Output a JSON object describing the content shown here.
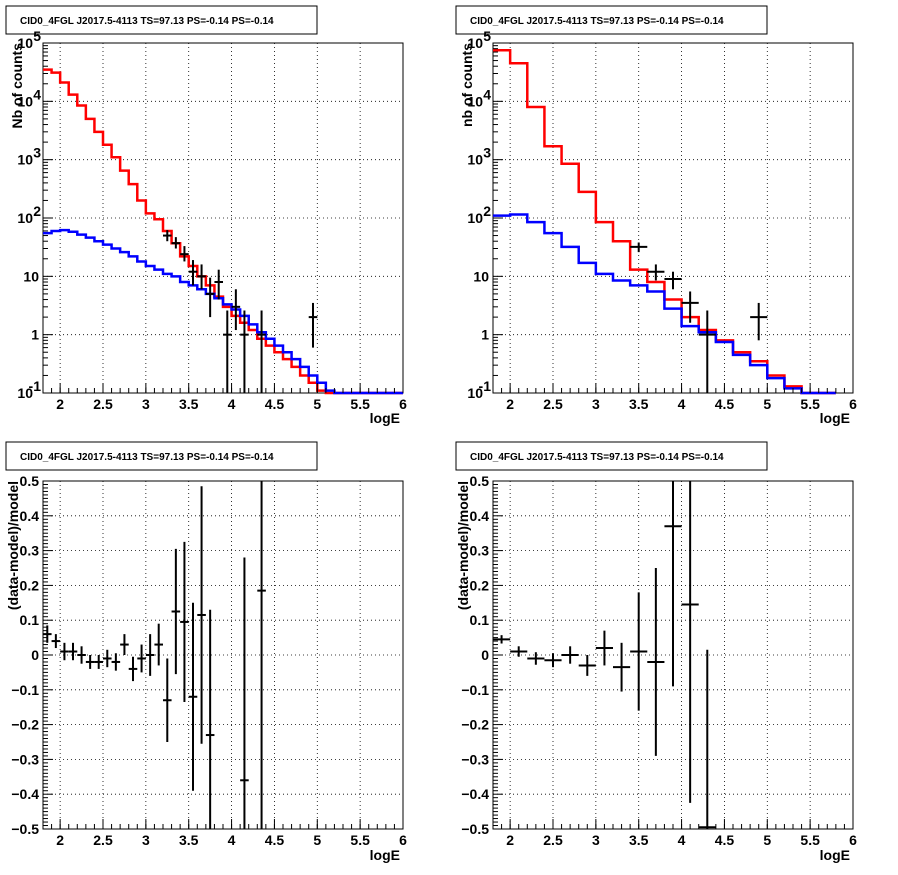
{
  "chart_data": [
    {
      "type": "line",
      "title": "CID0_4FGL J2017.5-4113 TS=97.13 PS=-0.14 PS=-0.14",
      "xlabel": "logE",
      "ylabel": "Nb of counts",
      "xlim": [
        1.8,
        6.0
      ],
      "ylim": [
        0.1,
        100000
      ],
      "yscale": "log",
      "grid": true,
      "step_edges": [
        1.8,
        1.9,
        2.0,
        2.1,
        2.2,
        2.3,
        2.4,
        2.5,
        2.6,
        2.7,
        2.8,
        2.9,
        3.0,
        3.1,
        3.2,
        3.3,
        3.4,
        3.5,
        3.6,
        3.7,
        3.8,
        3.9,
        4.0,
        4.1,
        4.2,
        4.3,
        4.4,
        4.5,
        4.6,
        4.7,
        4.8,
        4.9,
        5.0,
        5.1,
        5.2,
        5.3,
        5.4,
        5.5,
        5.6,
        5.7,
        5.8,
        5.9,
        6.0
      ],
      "series": [
        {
          "color": "#ff0000",
          "kind": "step",
          "values": [
            35000,
            31000,
            21000,
            13000,
            8500,
            5000,
            3000,
            1800,
            1100,
            650,
            380,
            200,
            120,
            95,
            60,
            37,
            22,
            15,
            10,
            7,
            4.5,
            3,
            2.1,
            1.6,
            1.2,
            0.85,
            0.65,
            0.5,
            0.38,
            0.28,
            0.2,
            0.15,
            0.11,
            0.1,
            0.1,
            0.1,
            0.1,
            0.1,
            0.1,
            0.1,
            0.1,
            0.1
          ]
        },
        {
          "color": "#0000ff",
          "kind": "step",
          "values": [
            55,
            60,
            62,
            58,
            52,
            46,
            40,
            35,
            30,
            26,
            22,
            18,
            15,
            13,
            11,
            10,
            8,
            7,
            6,
            5,
            4.2,
            3.3,
            2.7,
            2.1,
            1.5,
            1.1,
            0.85,
            0.65,
            0.5,
            0.38,
            0.28,
            0.2,
            0.15,
            0.11,
            0.1,
            0.1,
            0.1,
            0.1,
            0.1,
            0.1,
            0.1,
            0.1
          ]
        }
      ],
      "points": {
        "x": [
          3.25,
          3.35,
          3.45,
          3.55,
          3.65,
          3.75,
          3.85,
          3.95,
          4.05,
          4.15,
          4.35,
          4.95
        ],
        "y": [
          50,
          37,
          24,
          12,
          10,
          5,
          8,
          1,
          3,
          1,
          1,
          2
        ],
        "ylo": [
          40,
          30,
          18,
          7,
          6,
          2,
          4,
          0.1,
          1.2,
          0.1,
          0.1,
          0.6
        ],
        "yhi": [
          62,
          47,
          33,
          19,
          16,
          9.5,
          13,
          2.6,
          6,
          2.6,
          2.6,
          3.5
        ],
        "xerr": 0.05
      }
    },
    {
      "type": "line",
      "title": "CID0_4FGL J2017.5-4113 TS=97.13 PS=-0.14 PS=-0.14",
      "xlabel": "logE",
      "ylabel": "nb of counts",
      "xlim": [
        1.8,
        6.0
      ],
      "ylim": [
        0.1,
        100000
      ],
      "yscale": "log",
      "grid": true,
      "step_edges": [
        1.8,
        2.0,
        2.2,
        2.4,
        2.6,
        2.8,
        3.0,
        3.2,
        3.4,
        3.6,
        3.8,
        4.0,
        4.2,
        4.4,
        4.6,
        4.8,
        5.0,
        5.2,
        5.4,
        5.6,
        5.8,
        6.0
      ],
      "series": [
        {
          "color": "#ff0000",
          "kind": "step",
          "values": [
            75000,
            45000,
            8000,
            1700,
            850,
            280,
            85,
            40,
            13,
            8,
            4,
            2,
            1.2,
            0.8,
            0.5,
            0.35,
            0.2,
            0.13,
            0.1,
            0.1
          ]
        },
        {
          "color": "#0000ff",
          "kind": "step",
          "values": [
            110,
            115,
            85,
            55,
            32,
            17,
            11,
            8.5,
            7,
            5.5,
            2.8,
            1.4,
            1.1,
            0.75,
            0.45,
            0.3,
            0.18,
            0.12,
            0.1,
            0.1
          ]
        }
      ],
      "points": {
        "x": [
          3.5,
          3.7,
          3.9,
          4.1,
          4.3,
          4.9
        ],
        "y": [
          32,
          12,
          9,
          3.5,
          1,
          2
        ],
        "ylo": [
          26,
          8.5,
          6,
          1.6,
          0.1,
          0.8
        ],
        "yhi": [
          38,
          16,
          12,
          5.5,
          2.6,
          3.5
        ],
        "xerr": 0.1
      }
    },
    {
      "type": "scatter",
      "title": "CID0_4FGL J2017.5-4113 TS=97.13 PS=-0.14 PS=-0.14",
      "xlabel": "logE",
      "ylabel": "(data-model)/model",
      "xlim": [
        1.8,
        6.0
      ],
      "ylim": [
        -0.5,
        0.5
      ],
      "grid": true,
      "points": {
        "x": [
          1.85,
          1.95,
          2.05,
          2.15,
          2.25,
          2.35,
          2.45,
          2.55,
          2.65,
          2.75,
          2.85,
          2.95,
          3.05,
          3.15,
          3.25,
          3.35,
          3.45,
          3.55,
          3.65,
          3.75,
          4.15,
          4.35
        ],
        "y": [
          0.06,
          0.04,
          0.01,
          0.01,
          0.0,
          -0.02,
          -0.02,
          -0.01,
          -0.02,
          0.03,
          -0.04,
          -0.01,
          0.0,
          0.03,
          -0.13,
          0.125,
          0.095,
          -0.12,
          0.115,
          -0.23,
          -0.36,
          0.185
        ],
        "yerr": [
          0.025,
          0.02,
          0.025,
          0.025,
          0.025,
          0.02,
          0.02,
          0.025,
          0.025,
          0.03,
          0.035,
          0.04,
          0.06,
          0.06,
          0.12,
          0.18,
          0.23,
          0.27,
          0.37,
          0.36,
          0.64,
          0.69
        ],
        "xerr": 0.05
      }
    },
    {
      "type": "scatter",
      "title": "CID0_4FGL J2017.5-4113 TS=97.13 PS=-0.14 PS=-0.14",
      "xlabel": "logE",
      "ylabel": "(data-model)/model",
      "xlim": [
        1.8,
        6.0
      ],
      "ylim": [
        -0.5,
        0.5
      ],
      "grid": true,
      "points": {
        "x": [
          1.9,
          2.1,
          2.3,
          2.5,
          2.7,
          2.9,
          3.1,
          3.3,
          3.5,
          3.7,
          3.9,
          4.1,
          4.3
        ],
        "y": [
          0.045,
          0.01,
          -0.01,
          -0.015,
          0.0,
          -0.03,
          0.02,
          -0.035,
          0.01,
          -0.02,
          0.37,
          0.145,
          -0.495
        ],
        "yerr": [
          0.012,
          0.015,
          0.018,
          0.02,
          0.025,
          0.03,
          0.05,
          0.07,
          0.17,
          0.27,
          0.46,
          0.57,
          0.51
        ],
        "xerr": 0.1
      }
    }
  ]
}
